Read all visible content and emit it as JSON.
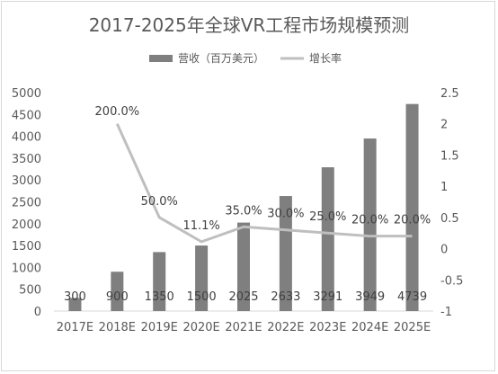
{
  "chart_data": {
    "type": "bar+line",
    "title": "2017-2025年全球VR工程市场规模预测",
    "categories": [
      "2017E",
      "2018E",
      "2019E",
      "2020E",
      "2021E",
      "2022E",
      "2023E",
      "2024E",
      "2025E"
    ],
    "series": [
      {
        "name": "营收（百万美元）",
        "type": "bar",
        "axis": "left",
        "color": "#7f7f7f",
        "values": [
          300,
          900,
          1350,
          1500,
          2025,
          2633,
          3291,
          3949,
          4739
        ],
        "labels": [
          "300",
          "900",
          "1350",
          "1500",
          "2025",
          "2633",
          "3291",
          "3949",
          "4739"
        ]
      },
      {
        "name": "增长率",
        "type": "line",
        "axis": "right",
        "color": "#bfbfbf",
        "values": [
          null,
          2.0,
          0.5,
          0.111,
          0.35,
          0.3,
          0.25,
          0.2,
          0.2
        ],
        "labels": [
          "",
          "200.0%",
          "50.0%",
          "11.1%",
          "35.0%",
          "30.0%",
          "25.0%",
          "20.0%",
          "20.0%"
        ]
      }
    ],
    "y_left": {
      "min": 0,
      "max": 5000,
      "step": 500,
      "ticks": [
        "0",
        "500",
        "1000",
        "1500",
        "2000",
        "2500",
        "3000",
        "3500",
        "4000",
        "4500",
        "5000"
      ]
    },
    "y_right": {
      "min": -1,
      "max": 2.5,
      "step": 0.5,
      "ticks": [
        "-1",
        "-0.5",
        "0",
        "0.5",
        "1",
        "1.5",
        "2",
        "2.5"
      ]
    },
    "grid": false,
    "legend_position": "top"
  }
}
